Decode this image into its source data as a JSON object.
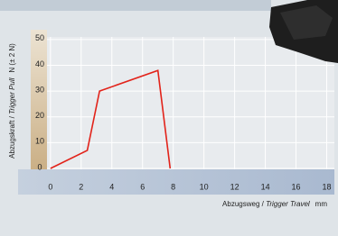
{
  "chart_data": {
    "type": "line",
    "x_label": {
      "main": "Abzugsweg / ",
      "italic": "Trigger Travel",
      "unit": "mm"
    },
    "y_label": {
      "main": "Abzugskraft / ",
      "italic": "Trigger Pull",
      "unit": "N  (± 2 N)"
    },
    "x": [
      0,
      2.4,
      3.2,
      7,
      7.8
    ],
    "values": [
      0,
      7,
      30,
      38,
      0
    ],
    "color": "#e2231a",
    "xlim": [
      -1.05,
      18.5
    ],
    "xticks": [
      0,
      2,
      4,
      6,
      8,
      10,
      12,
      14,
      16,
      18
    ],
    "ylim": [
      0,
      51
    ],
    "yticks": [
      0,
      10,
      20,
      30,
      40,
      50
    ],
    "grid": true
  }
}
